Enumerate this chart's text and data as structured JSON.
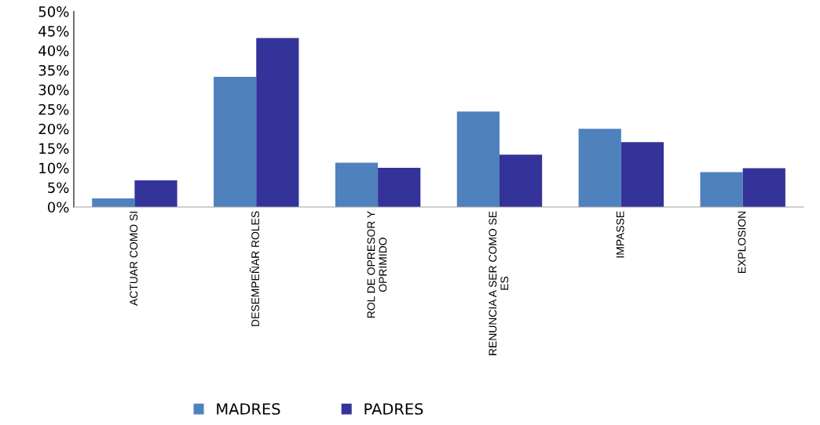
{
  "chart_data": {
    "type": "bar",
    "categories": [
      "ACTUAR COMO SI",
      "DESEMPEÑAR ROLES",
      "ROL DE OPRESOR Y OPRIMIDO",
      "RENUNCIA A SER COMO SE ES",
      "IMPASSE",
      "EXPLOSION"
    ],
    "series": [
      {
        "name": "MADRES",
        "color": "#4f81bd",
        "values": [
          2.2,
          33.3,
          11.3,
          24.4,
          20.0,
          8.9
        ]
      },
      {
        "name": "PADRES",
        "color": "#333399",
        "values": [
          6.8,
          43.2,
          10.0,
          13.4,
          16.6,
          9.9
        ]
      }
    ],
    "ylim": [
      0,
      50
    ],
    "yticks": [
      {
        "value": 0,
        "label": "0%"
      },
      {
        "value": 5,
        "label": "5%"
      },
      {
        "value": 10,
        "label": "10%"
      },
      {
        "value": 15,
        "label": "15%"
      },
      {
        "value": 20,
        "label": "20%"
      },
      {
        "value": 25,
        "label": "25%"
      },
      {
        "value": 30,
        "label": "30%"
      },
      {
        "value": 35,
        "label": "35%"
      },
      {
        "value": 40,
        "label": "40%"
      },
      {
        "value": 45,
        "label": "45%"
      },
      {
        "value": 50,
        "label": "50%"
      }
    ],
    "grid": false,
    "legend": "bottom"
  }
}
